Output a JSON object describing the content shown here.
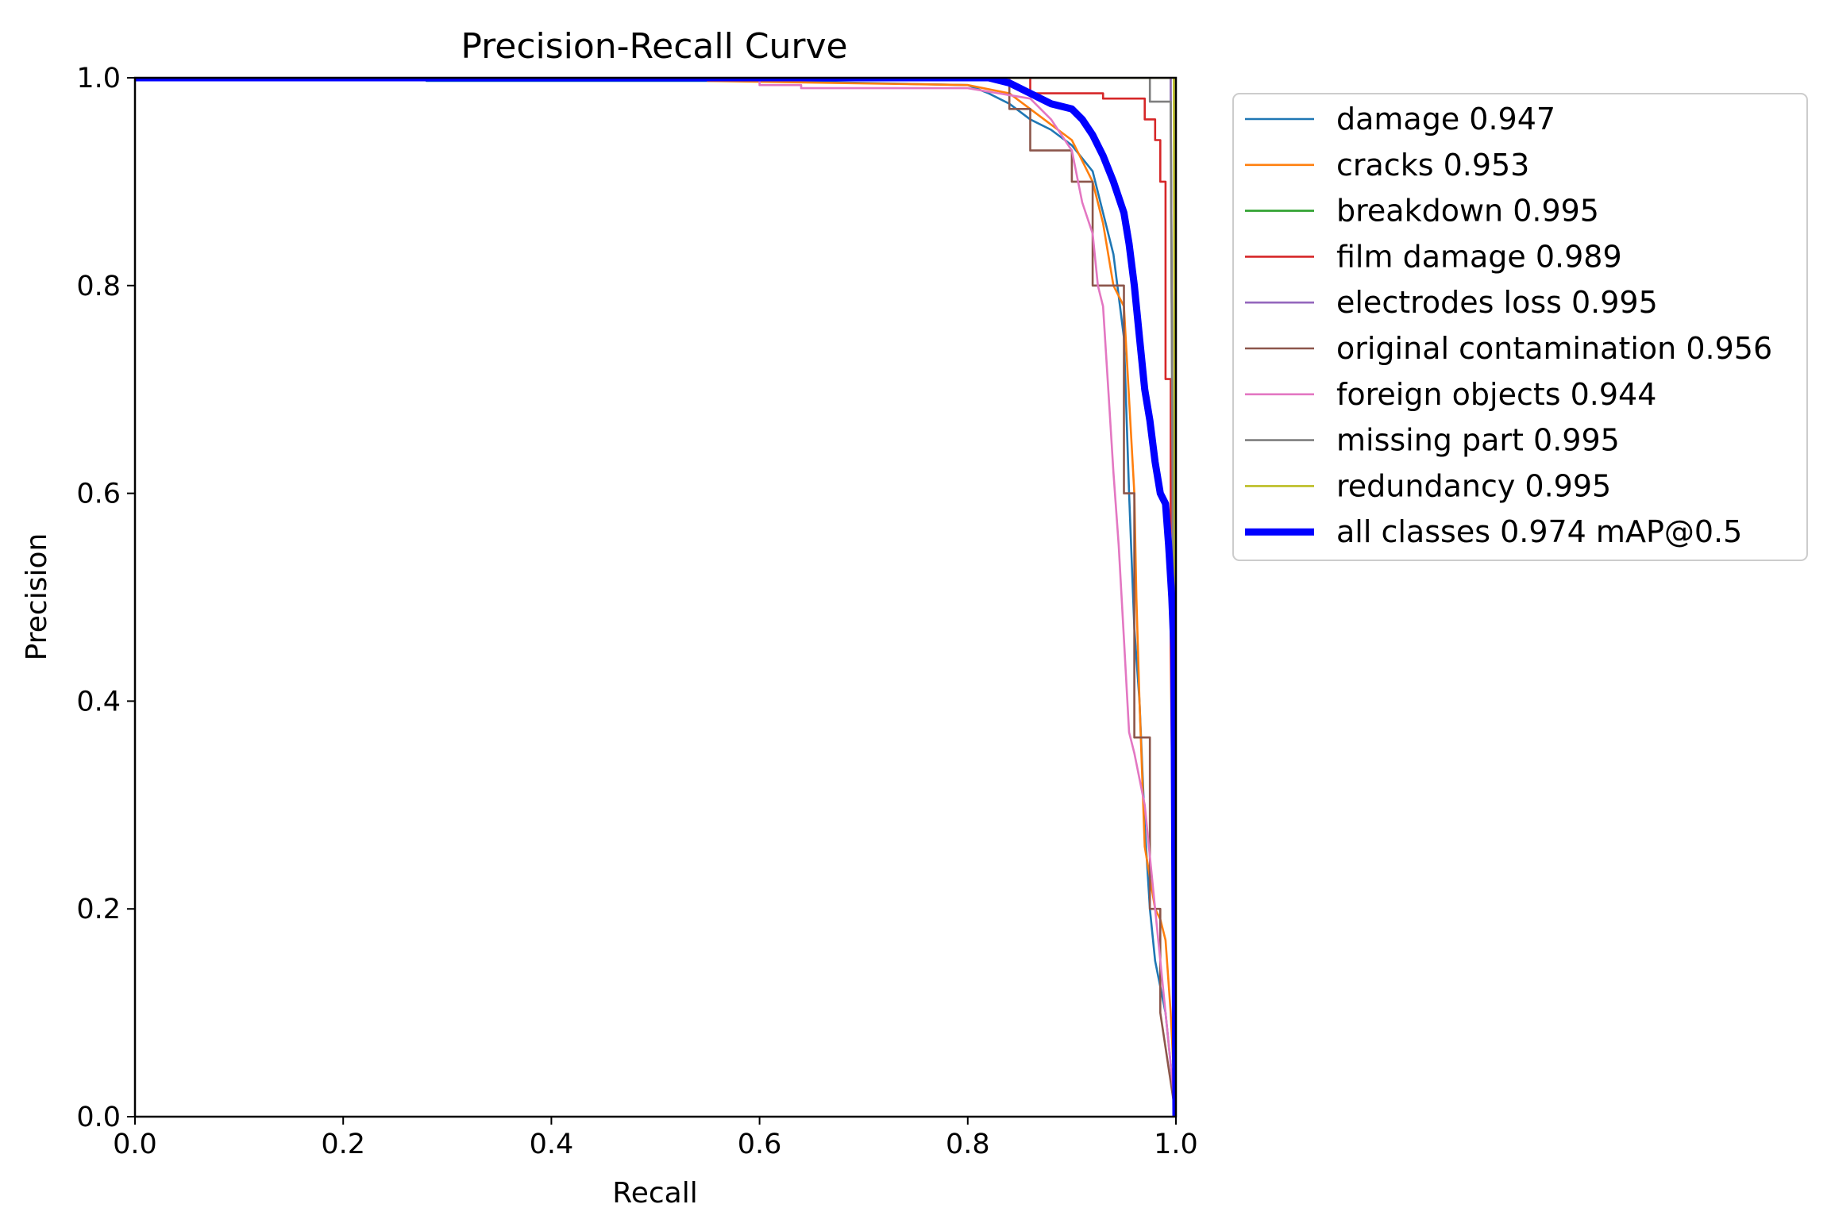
{
  "chart_data": {
    "type": "line",
    "title": "Precision-Recall Curve",
    "xlabel": "Recall",
    "ylabel": "Precision",
    "xlim": [
      0,
      1
    ],
    "ylim": [
      0,
      1
    ],
    "xticks": [
      "0.0",
      "0.2",
      "0.4",
      "0.6",
      "0.8",
      "1.0"
    ],
    "yticks": [
      "0.0",
      "0.2",
      "0.4",
      "0.6",
      "0.8",
      "1.0"
    ],
    "legend_position": "outside-top-right",
    "series": [
      {
        "name": "damage 0.947",
        "color": "#1f77b4",
        "width": 1,
        "points": [
          [
            0,
            1
          ],
          [
            0.28,
            1
          ],
          [
            0.28,
            0.997
          ],
          [
            0.6,
            0.997
          ],
          [
            0.8,
            0.993
          ],
          [
            0.82,
            0.985
          ],
          [
            0.84,
            0.975
          ],
          [
            0.86,
            0.96
          ],
          [
            0.88,
            0.95
          ],
          [
            0.9,
            0.935
          ],
          [
            0.92,
            0.91
          ],
          [
            0.93,
            0.87
          ],
          [
            0.94,
            0.83
          ],
          [
            0.95,
            0.75
          ],
          [
            0.955,
            0.6
          ],
          [
            0.96,
            0.47
          ],
          [
            0.965,
            0.4
          ],
          [
            0.97,
            0.28
          ],
          [
            0.975,
            0.2
          ],
          [
            0.98,
            0.15
          ],
          [
            0.99,
            0.1
          ],
          [
            1.0,
            0.0
          ]
        ]
      },
      {
        "name": "cracks 0.953",
        "color": "#ff7f0e",
        "width": 1,
        "points": [
          [
            0,
            1
          ],
          [
            0.55,
            1
          ],
          [
            0.55,
            0.997
          ],
          [
            0.8,
            0.993
          ],
          [
            0.84,
            0.985
          ],
          [
            0.86,
            0.97
          ],
          [
            0.88,
            0.955
          ],
          [
            0.9,
            0.94
          ],
          [
            0.91,
            0.92
          ],
          [
            0.92,
            0.9
          ],
          [
            0.93,
            0.86
          ],
          [
            0.94,
            0.8
          ],
          [
            0.95,
            0.78
          ],
          [
            0.96,
            0.6
          ],
          [
            0.962,
            0.5
          ],
          [
            0.965,
            0.4
          ],
          [
            0.97,
            0.26
          ],
          [
            0.98,
            0.2
          ],
          [
            0.985,
            0.19
          ],
          [
            0.99,
            0.17
          ],
          [
            0.995,
            0.1
          ],
          [
            1.0,
            0.0
          ]
        ]
      },
      {
        "name": "breakdown 0.995",
        "color": "#2ca02c",
        "width": 1,
        "points": [
          [
            0,
            1
          ],
          [
            0.995,
            1
          ],
          [
            0.995,
            0.99
          ],
          [
            1.0,
            0.0
          ]
        ]
      },
      {
        "name": "film damage 0.989",
        "color": "#d62728",
        "width": 1,
        "points": [
          [
            0,
            1
          ],
          [
            0.86,
            1
          ],
          [
            0.86,
            0.985
          ],
          [
            0.93,
            0.985
          ],
          [
            0.93,
            0.98
          ],
          [
            0.97,
            0.98
          ],
          [
            0.97,
            0.96
          ],
          [
            0.98,
            0.96
          ],
          [
            0.98,
            0.94
          ],
          [
            0.985,
            0.94
          ],
          [
            0.985,
            0.9
          ],
          [
            0.99,
            0.9
          ],
          [
            0.99,
            0.71
          ],
          [
            0.995,
            0.71
          ],
          [
            0.995,
            0.45
          ],
          [
            1.0,
            0.0
          ]
        ]
      },
      {
        "name": "electrodes loss 0.995",
        "color": "#9467bd",
        "width": 1,
        "points": [
          [
            0,
            1
          ],
          [
            0.995,
            1
          ],
          [
            0.995,
            0.99
          ],
          [
            1.0,
            0.0
          ]
        ]
      },
      {
        "name": "original contamination 0.956",
        "color": "#8c564b",
        "width": 1,
        "points": [
          [
            0,
            1
          ],
          [
            0.84,
            1
          ],
          [
            0.84,
            0.97
          ],
          [
            0.86,
            0.97
          ],
          [
            0.86,
            0.93
          ],
          [
            0.9,
            0.93
          ],
          [
            0.9,
            0.9
          ],
          [
            0.92,
            0.9
          ],
          [
            0.92,
            0.8
          ],
          [
            0.95,
            0.8
          ],
          [
            0.95,
            0.6
          ],
          [
            0.96,
            0.6
          ],
          [
            0.96,
            0.365
          ],
          [
            0.975,
            0.365
          ],
          [
            0.975,
            0.2
          ],
          [
            0.985,
            0.2
          ],
          [
            0.985,
            0.1
          ],
          [
            1.0,
            0.0
          ]
        ]
      },
      {
        "name": "foreign objects 0.944",
        "color": "#e377c2",
        "width": 1,
        "points": [
          [
            0,
            1
          ],
          [
            0.6,
            1
          ],
          [
            0.6,
            0.993
          ],
          [
            0.64,
            0.993
          ],
          [
            0.64,
            0.99
          ],
          [
            0.8,
            0.99
          ],
          [
            0.86,
            0.98
          ],
          [
            0.88,
            0.96
          ],
          [
            0.9,
            0.93
          ],
          [
            0.91,
            0.88
          ],
          [
            0.92,
            0.85
          ],
          [
            0.925,
            0.8
          ],
          [
            0.93,
            0.78
          ],
          [
            0.935,
            0.7
          ],
          [
            0.94,
            0.62
          ],
          [
            0.945,
            0.55
          ],
          [
            0.95,
            0.46
          ],
          [
            0.955,
            0.37
          ],
          [
            0.96,
            0.35
          ],
          [
            0.97,
            0.3
          ],
          [
            0.98,
            0.2
          ],
          [
            0.99,
            0.1
          ],
          [
            1.0,
            0.0
          ]
        ]
      },
      {
        "name": "missing part 0.995",
        "color": "#7f7f7f",
        "width": 1,
        "points": [
          [
            0,
            1
          ],
          [
            0.975,
            1
          ],
          [
            0.975,
            0.977
          ],
          [
            0.995,
            0.977
          ],
          [
            0.995,
            0.95
          ],
          [
            1.0,
            0.0
          ]
        ]
      },
      {
        "name": "redundancy 0.995",
        "color": "#bcbd22",
        "width": 1,
        "points": [
          [
            0,
            1
          ],
          [
            0.998,
            1
          ],
          [
            0.998,
            0.99
          ],
          [
            1.0,
            0.0
          ]
        ]
      },
      {
        "name": "all classes 0.974 mAP@0.5",
        "color": "#0000ff",
        "width": 3,
        "points": [
          [
            0,
            1
          ],
          [
            0.82,
            1
          ],
          [
            0.84,
            0.995
          ],
          [
            0.86,
            0.985
          ],
          [
            0.87,
            0.98
          ],
          [
            0.88,
            0.975
          ],
          [
            0.9,
            0.97
          ],
          [
            0.91,
            0.96
          ],
          [
            0.92,
            0.945
          ],
          [
            0.93,
            0.925
          ],
          [
            0.94,
            0.9
          ],
          [
            0.95,
            0.87
          ],
          [
            0.955,
            0.84
          ],
          [
            0.96,
            0.8
          ],
          [
            0.965,
            0.75
          ],
          [
            0.97,
            0.7
          ],
          [
            0.975,
            0.67
          ],
          [
            0.98,
            0.63
          ],
          [
            0.985,
            0.6
          ],
          [
            0.99,
            0.59
          ],
          [
            0.993,
            0.55
          ],
          [
            0.996,
            0.5
          ],
          [
            0.998,
            0.45
          ],
          [
            1.0,
            0.0
          ]
        ]
      }
    ]
  }
}
